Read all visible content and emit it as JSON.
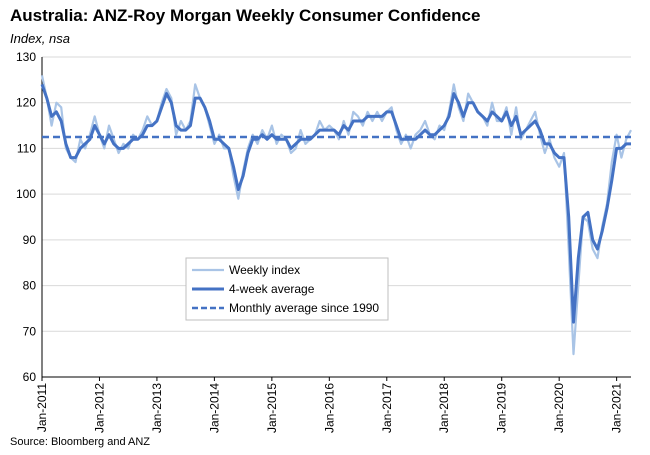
{
  "chart_data": {
    "type": "line",
    "title": "Australia: ANZ-Roy Morgan Weekly Consumer Confidence",
    "subtitle": "Index, nsa",
    "source": "Source: Bloomberg and ANZ",
    "ylim": [
      60,
      130
    ],
    "yticks": [
      60,
      70,
      80,
      90,
      100,
      110,
      120,
      130
    ],
    "xlim": [
      "2011-01",
      "2021-04"
    ],
    "xticks": [
      "Jan-2011",
      "Jan-2012",
      "Jan-2013",
      "Jan-2014",
      "Jan-2015",
      "Jan-2016",
      "Jan-2017",
      "Jan-2018",
      "Jan-2019",
      "Jan-2020",
      "Jan-2021"
    ],
    "grid": true,
    "legend_position": "center-left",
    "colors": {
      "weekly": "#a9c4e6",
      "avg4w": "#4472c4",
      "monthly_avg": "#4472c4"
    },
    "series": [
      {
        "name": "Weekly index",
        "x": [
          "2011-01",
          "2011-02",
          "2011-03",
          "2011-04",
          "2011-05",
          "2011-06",
          "2011-07",
          "2011-08",
          "2011-09",
          "2011-10",
          "2011-11",
          "2011-12",
          "2012-01",
          "2012-02",
          "2012-03",
          "2012-04",
          "2012-05",
          "2012-06",
          "2012-07",
          "2012-08",
          "2012-09",
          "2012-10",
          "2012-11",
          "2012-12",
          "2013-01",
          "2013-02",
          "2013-03",
          "2013-04",
          "2013-05",
          "2013-06",
          "2013-07",
          "2013-08",
          "2013-09",
          "2013-10",
          "2013-11",
          "2013-12",
          "2014-01",
          "2014-02",
          "2014-03",
          "2014-04",
          "2014-05",
          "2014-06",
          "2014-07",
          "2014-08",
          "2014-09",
          "2014-10",
          "2014-11",
          "2014-12",
          "2015-01",
          "2015-02",
          "2015-03",
          "2015-04",
          "2015-05",
          "2015-06",
          "2015-07",
          "2015-08",
          "2015-09",
          "2015-10",
          "2015-11",
          "2015-12",
          "2016-01",
          "2016-02",
          "2016-03",
          "2016-04",
          "2016-05",
          "2016-06",
          "2016-07",
          "2016-08",
          "2016-09",
          "2016-10",
          "2016-11",
          "2016-12",
          "2017-01",
          "2017-02",
          "2017-03",
          "2017-04",
          "2017-05",
          "2017-06",
          "2017-07",
          "2017-08",
          "2017-09",
          "2017-10",
          "2017-11",
          "2017-12",
          "2018-01",
          "2018-02",
          "2018-03",
          "2018-04",
          "2018-05",
          "2018-06",
          "2018-07",
          "2018-08",
          "2018-09",
          "2018-10",
          "2018-11",
          "2018-12",
          "2019-01",
          "2019-02",
          "2019-03",
          "2019-04",
          "2019-05",
          "2019-06",
          "2019-07",
          "2019-08",
          "2019-09",
          "2019-10",
          "2019-11",
          "2019-12",
          "2020-01",
          "2020-02",
          "2020-03",
          "2020-04",
          "2020-05",
          "2020-06",
          "2020-07",
          "2020-08",
          "2020-09",
          "2020-10",
          "2020-11",
          "2020-12",
          "2021-01",
          "2021-02",
          "2021-03",
          "2021-04"
        ],
        "values": [
          126,
          121,
          115,
          120,
          119,
          110,
          108,
          107,
          112,
          110,
          113,
          117,
          113,
          110,
          115,
          112,
          109,
          111,
          110,
          113,
          112,
          114,
          117,
          115,
          116,
          120,
          123,
          121,
          113,
          116,
          114,
          116,
          124,
          121,
          119,
          115,
          111,
          113,
          110,
          110,
          104,
          99,
          105,
          110,
          113,
          111,
          114,
          112,
          115,
          111,
          113,
          112,
          109,
          110,
          114,
          111,
          112,
          113,
          116,
          114,
          115,
          114,
          112,
          116,
          113,
          118,
          117,
          115,
          118,
          116,
          118,
          116,
          118,
          119,
          114,
          111,
          113,
          110,
          113,
          114,
          116,
          113,
          112,
          115,
          114,
          118,
          124,
          119,
          116,
          122,
          120,
          118,
          117,
          115,
          120,
          116,
          116,
          119,
          113,
          119,
          112,
          114,
          116,
          118,
          113,
          109,
          112,
          108,
          106,
          109,
          88,
          65,
          80,
          95,
          94,
          88,
          86,
          93,
          98,
          107,
          113,
          108,
          112,
          114
        ]
      },
      {
        "name": "4-week average",
        "x": [
          "2011-01",
          "2011-02",
          "2011-03",
          "2011-04",
          "2011-05",
          "2011-06",
          "2011-07",
          "2011-08",
          "2011-09",
          "2011-10",
          "2011-11",
          "2011-12",
          "2012-01",
          "2012-02",
          "2012-03",
          "2012-04",
          "2012-05",
          "2012-06",
          "2012-07",
          "2012-08",
          "2012-09",
          "2012-10",
          "2012-11",
          "2012-12",
          "2013-01",
          "2013-02",
          "2013-03",
          "2013-04",
          "2013-05",
          "2013-06",
          "2013-07",
          "2013-08",
          "2013-09",
          "2013-10",
          "2013-11",
          "2013-12",
          "2014-01",
          "2014-02",
          "2014-03",
          "2014-04",
          "2014-05",
          "2014-06",
          "2014-07",
          "2014-08",
          "2014-09",
          "2014-10",
          "2014-11",
          "2014-12",
          "2015-01",
          "2015-02",
          "2015-03",
          "2015-04",
          "2015-05",
          "2015-06",
          "2015-07",
          "2015-08",
          "2015-09",
          "2015-10",
          "2015-11",
          "2015-12",
          "2016-01",
          "2016-02",
          "2016-03",
          "2016-04",
          "2016-05",
          "2016-06",
          "2016-07",
          "2016-08",
          "2016-09",
          "2016-10",
          "2016-11",
          "2016-12",
          "2017-01",
          "2017-02",
          "2017-03",
          "2017-04",
          "2017-05",
          "2017-06",
          "2017-07",
          "2017-08",
          "2017-09",
          "2017-10",
          "2017-11",
          "2017-12",
          "2018-01",
          "2018-02",
          "2018-03",
          "2018-04",
          "2018-05",
          "2018-06",
          "2018-07",
          "2018-08",
          "2018-09",
          "2018-10",
          "2018-11",
          "2018-12",
          "2019-01",
          "2019-02",
          "2019-03",
          "2019-04",
          "2019-05",
          "2019-06",
          "2019-07",
          "2019-08",
          "2019-09",
          "2019-10",
          "2019-11",
          "2019-12",
          "2020-01",
          "2020-02",
          "2020-03",
          "2020-04",
          "2020-05",
          "2020-06",
          "2020-07",
          "2020-08",
          "2020-09",
          "2020-10",
          "2020-11",
          "2020-12",
          "2021-01",
          "2021-02",
          "2021-03",
          "2021-04"
        ],
        "values": [
          124,
          121,
          117,
          118,
          116,
          111,
          108,
          108,
          110,
          111,
          112,
          115,
          113,
          111,
          113,
          111,
          110,
          110,
          111,
          112,
          112,
          113,
          115,
          115,
          116,
          119,
          122,
          120,
          115,
          114,
          114,
          115,
          121,
          121,
          119,
          116,
          112,
          112,
          111,
          110,
          106,
          101,
          104,
          109,
          112,
          112,
          113,
          112,
          113,
          112,
          112,
          112,
          110,
          111,
          112,
          112,
          112,
          113,
          114,
          114,
          114,
          114,
          113,
          115,
          114,
          116,
          116,
          116,
          117,
          117,
          117,
          117,
          118,
          118,
          115,
          112,
          112,
          112,
          112,
          113,
          114,
          113,
          113,
          114,
          115,
          117,
          122,
          120,
          117,
          120,
          120,
          118,
          117,
          116,
          118,
          117,
          116,
          118,
          115,
          117,
          113,
          114,
          115,
          116,
          114,
          111,
          111,
          109,
          108,
          108,
          95,
          72,
          86,
          95,
          96,
          90,
          88,
          92,
          97,
          103,
          110,
          110,
          111,
          111
        ]
      },
      {
        "name": "Monthly average since 1990",
        "value": 112.5
      }
    ]
  }
}
